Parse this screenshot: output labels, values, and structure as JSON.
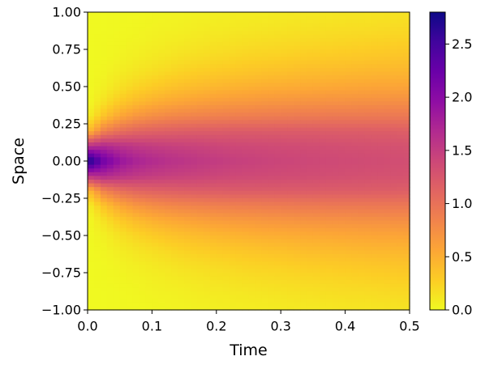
{
  "chart_data": {
    "type": "heatmap",
    "title": "",
    "xlabel": "Time",
    "ylabel": "Space",
    "xlim": [
      0.0,
      0.5
    ],
    "ylim": [
      -1.0,
      1.0
    ],
    "x_ticks": [
      0.0,
      0.1,
      0.2,
      0.3,
      0.4,
      0.5
    ],
    "x_tick_labels": [
      "0.0",
      "0.1",
      "0.2",
      "0.3",
      "0.4",
      "0.5"
    ],
    "y_ticks": [
      -1.0,
      -0.75,
      -0.5,
      -0.25,
      0.0,
      0.25,
      0.5,
      0.75,
      1.0
    ],
    "y_tick_labels": [
      "−1.00",
      "−0.75",
      "−0.50",
      "−0.25",
      "0.00",
      "0.25",
      "0.50",
      "0.75",
      "1.00"
    ],
    "colorbar": {
      "colormap": "plasma_r",
      "range": [
        0.0,
        2.8
      ],
      "ticks": [
        0.0,
        0.5,
        1.0,
        1.5,
        2.0,
        2.5
      ],
      "tick_labels": [
        "0.0",
        "0.5",
        "1.0",
        "1.5",
        "2.0",
        "2.5"
      ]
    },
    "grid": false,
    "x_samples": [
      0.0,
      0.025,
      0.05,
      0.075,
      0.1,
      0.125,
      0.15,
      0.175,
      0.2,
      0.225,
      0.25,
      0.275,
      0.3,
      0.325,
      0.35,
      0.375,
      0.4,
      0.425,
      0.45,
      0.475,
      0.5
    ],
    "y_samples": [
      -1.0,
      -0.9,
      -0.8,
      -0.7,
      -0.6,
      -0.5,
      -0.4,
      -0.3,
      -0.2,
      -0.1,
      0.0,
      0.1,
      0.2,
      0.3,
      0.4,
      0.5,
      0.6,
      0.7,
      0.8,
      0.9,
      1.0
    ],
    "z_values": [
      [
        0.0,
        0.0,
        0.01,
        0.01,
        0.02,
        0.03,
        0.04,
        0.05,
        0.06,
        0.07,
        0.08,
        0.08,
        0.09,
        0.1,
        0.1,
        0.11,
        0.12,
        0.12,
        0.13,
        0.13,
        0.14
      ],
      [
        0.0,
        0.0,
        0.01,
        0.02,
        0.04,
        0.05,
        0.06,
        0.08,
        0.09,
        0.1,
        0.11,
        0.12,
        0.13,
        0.14,
        0.15,
        0.16,
        0.17,
        0.17,
        0.18,
        0.19,
        0.2
      ],
      [
        0.0,
        0.01,
        0.02,
        0.04,
        0.06,
        0.08,
        0.1,
        0.12,
        0.14,
        0.15,
        0.17,
        0.18,
        0.19,
        0.2,
        0.21,
        0.22,
        0.23,
        0.24,
        0.25,
        0.26,
        0.26
      ],
      [
        0.0,
        0.01,
        0.04,
        0.07,
        0.1,
        0.13,
        0.16,
        0.18,
        0.2,
        0.22,
        0.24,
        0.25,
        0.26,
        0.28,
        0.29,
        0.3,
        0.31,
        0.32,
        0.33,
        0.34,
        0.35
      ],
      [
        0.0,
        0.03,
        0.08,
        0.13,
        0.17,
        0.21,
        0.25,
        0.28,
        0.3,
        0.32,
        0.34,
        0.36,
        0.37,
        0.39,
        0.4,
        0.41,
        0.42,
        0.43,
        0.44,
        0.44,
        0.45
      ],
      [
        0.0,
        0.06,
        0.15,
        0.23,
        0.29,
        0.34,
        0.38,
        0.41,
        0.44,
        0.46,
        0.48,
        0.5,
        0.51,
        0.52,
        0.53,
        0.54,
        0.55,
        0.56,
        0.57,
        0.57,
        0.58
      ],
      [
        0.0,
        0.15,
        0.3,
        0.4,
        0.48,
        0.53,
        0.57,
        0.6,
        0.63,
        0.65,
        0.66,
        0.68,
        0.69,
        0.7,
        0.71,
        0.72,
        0.72,
        0.73,
        0.73,
        0.74,
        0.74
      ],
      [
        0.05,
        0.35,
        0.56,
        0.68,
        0.75,
        0.8,
        0.83,
        0.85,
        0.87,
        0.88,
        0.89,
        0.9,
        0.91,
        0.92,
        0.92,
        0.93,
        0.93,
        0.93,
        0.94,
        0.94,
        0.94
      ],
      [
        0.4,
        0.85,
        1.02,
        1.1,
        1.14,
        1.16,
        1.18,
        1.19,
        1.19,
        1.2,
        1.2,
        1.2,
        1.2,
        1.2,
        1.2,
        1.19,
        1.19,
        1.19,
        1.18,
        1.18,
        1.17
      ],
      [
        1.6,
        1.68,
        1.6,
        1.54,
        1.5,
        1.47,
        1.45,
        1.43,
        1.41,
        1.39,
        1.38,
        1.37,
        1.36,
        1.35,
        1.34,
        1.33,
        1.32,
        1.31,
        1.3,
        1.3,
        1.29
      ],
      [
        2.8,
        2.2,
        1.9,
        1.76,
        1.68,
        1.62,
        1.58,
        1.54,
        1.51,
        1.48,
        1.46,
        1.44,
        1.42,
        1.41,
        1.39,
        1.38,
        1.37,
        1.36,
        1.35,
        1.34,
        1.33
      ],
      [
        1.6,
        1.68,
        1.6,
        1.54,
        1.5,
        1.47,
        1.45,
        1.43,
        1.41,
        1.39,
        1.38,
        1.37,
        1.36,
        1.35,
        1.34,
        1.33,
        1.32,
        1.31,
        1.3,
        1.3,
        1.29
      ],
      [
        0.4,
        0.85,
        1.02,
        1.1,
        1.14,
        1.16,
        1.18,
        1.19,
        1.19,
        1.2,
        1.2,
        1.2,
        1.2,
        1.2,
        1.2,
        1.19,
        1.19,
        1.19,
        1.18,
        1.18,
        1.17
      ],
      [
        0.05,
        0.35,
        0.56,
        0.68,
        0.75,
        0.8,
        0.83,
        0.85,
        0.87,
        0.88,
        0.89,
        0.9,
        0.91,
        0.92,
        0.92,
        0.93,
        0.93,
        0.93,
        0.94,
        0.94,
        0.94
      ],
      [
        0.0,
        0.15,
        0.3,
        0.4,
        0.48,
        0.53,
        0.57,
        0.6,
        0.63,
        0.65,
        0.66,
        0.68,
        0.69,
        0.7,
        0.71,
        0.72,
        0.72,
        0.73,
        0.73,
        0.74,
        0.74
      ],
      [
        0.0,
        0.06,
        0.15,
        0.23,
        0.29,
        0.34,
        0.38,
        0.41,
        0.44,
        0.46,
        0.48,
        0.5,
        0.51,
        0.52,
        0.53,
        0.54,
        0.55,
        0.56,
        0.57,
        0.57,
        0.58
      ],
      [
        0.0,
        0.03,
        0.08,
        0.13,
        0.17,
        0.21,
        0.25,
        0.28,
        0.3,
        0.32,
        0.34,
        0.36,
        0.37,
        0.39,
        0.4,
        0.41,
        0.42,
        0.43,
        0.44,
        0.44,
        0.45
      ],
      [
        0.0,
        0.01,
        0.04,
        0.07,
        0.1,
        0.13,
        0.16,
        0.18,
        0.2,
        0.22,
        0.24,
        0.25,
        0.26,
        0.28,
        0.29,
        0.3,
        0.31,
        0.32,
        0.33,
        0.34,
        0.35
      ],
      [
        0.0,
        0.01,
        0.02,
        0.04,
        0.06,
        0.08,
        0.1,
        0.12,
        0.14,
        0.15,
        0.17,
        0.18,
        0.19,
        0.2,
        0.21,
        0.22,
        0.23,
        0.24,
        0.25,
        0.26,
        0.26
      ],
      [
        0.0,
        0.0,
        0.01,
        0.02,
        0.04,
        0.05,
        0.06,
        0.08,
        0.09,
        0.1,
        0.11,
        0.12,
        0.13,
        0.14,
        0.15,
        0.16,
        0.17,
        0.17,
        0.18,
        0.19,
        0.2
      ],
      [
        0.0,
        0.0,
        0.01,
        0.01,
        0.02,
        0.03,
        0.04,
        0.05,
        0.06,
        0.07,
        0.08,
        0.08,
        0.09,
        0.1,
        0.1,
        0.11,
        0.12,
        0.12,
        0.13,
        0.13,
        0.14
      ]
    ]
  }
}
